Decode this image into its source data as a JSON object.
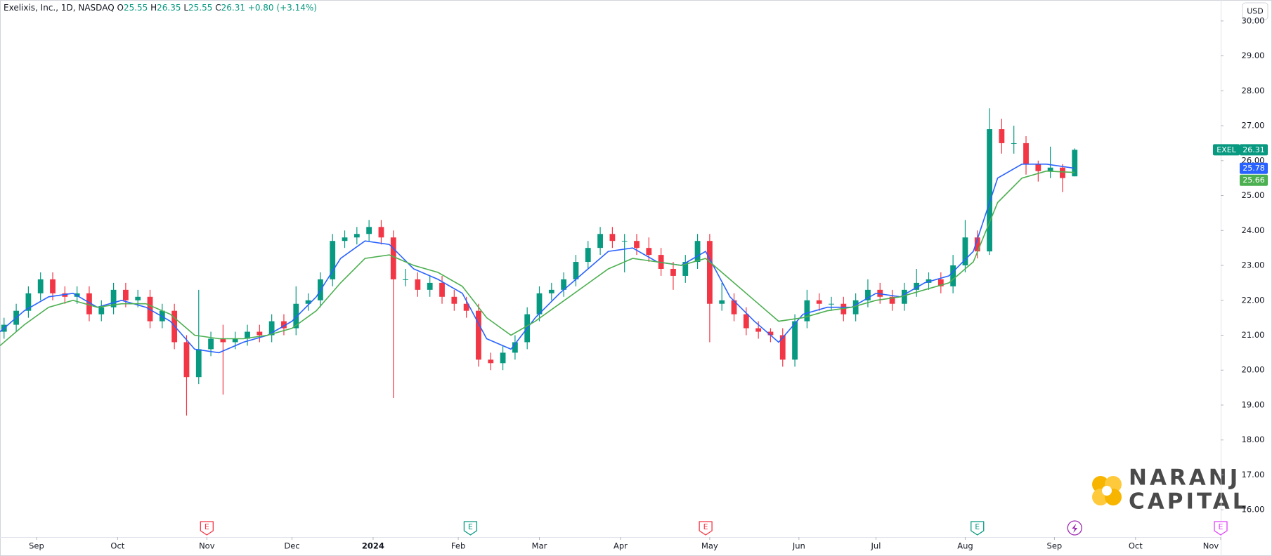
{
  "header": {
    "symbol": "Exelixis, Inc., 1D, NASDAQ",
    "ohlc_labels": [
      "O",
      "H",
      "L",
      "C"
    ],
    "change": "+0.80 (+3.14%)"
  },
  "currency": "USD",
  "ticker": "EXEL",
  "logo": [
    "NARANJ",
    "CAPITAL"
  ],
  "chart_data": {
    "type": "candlestick",
    "up_color": "#089981",
    "down_color": "#f23645",
    "x": [
      1,
      4,
      7,
      10,
      13,
      16,
      19,
      22,
      25,
      28,
      31,
      34,
      37,
      40,
      43,
      46,
      49,
      52,
      55,
      58,
      61,
      64,
      67,
      70,
      73,
      76,
      79,
      82,
      85,
      88,
      91,
      94,
      97,
      100,
      103,
      106,
      109,
      112,
      115,
      118,
      121,
      124,
      127,
      130,
      133,
      136,
      139,
      142,
      145,
      148,
      151,
      154,
      157,
      160,
      163,
      166,
      169,
      172,
      175,
      178,
      181,
      184,
      187,
      190,
      193,
      196,
      199,
      202,
      205,
      208,
      211,
      214,
      217,
      220,
      223,
      226,
      229,
      232,
      235,
      238,
      241,
      244,
      247,
      250,
      253,
      256,
      259,
      262,
      265
    ],
    "open": [
      21.1,
      21.3,
      21.7,
      22.2,
      22.6,
      22.2,
      22.1,
      22.2,
      21.6,
      21.8,
      22.3,
      22.0,
      22.1,
      21.4,
      21.7,
      20.8,
      19.8,
      20.6,
      20.9,
      20.8,
      20.9,
      21.1,
      21.0,
      21.4,
      21.2,
      21.9,
      22.0,
      22.6,
      23.7,
      23.8,
      23.9,
      24.1,
      23.8,
      22.6,
      22.6,
      22.3,
      22.5,
      22.1,
      21.9,
      21.7,
      20.3,
      20.2,
      20.5,
      20.8,
      21.6,
      22.2,
      22.3,
      22.6,
      23.1,
      23.5,
      23.9,
      23.7,
      23.7,
      23.5,
      23.3,
      22.9,
      22.7,
      23.1,
      23.7,
      21.9,
      22.0,
      21.6,
      21.2,
      21.1,
      21.0,
      20.3,
      21.4,
      22.0,
      21.9,
      21.9,
      21.6,
      22.0,
      22.3,
      22.1,
      21.9,
      22.3,
      22.5,
      22.6,
      22.4,
      23.0,
      23.8,
      23.4,
      26.9,
      26.5,
      26.5,
      25.9,
      25.7,
      25.8,
      25.55
    ],
    "high": [
      21.5,
      21.9,
      22.4,
      22.8,
      22.8,
      22.4,
      22.4,
      22.4,
      22.0,
      22.5,
      22.5,
      22.3,
      22.3,
      21.9,
      21.9,
      21.0,
      22.3,
      21.1,
      21.3,
      21.1,
      21.3,
      21.3,
      21.6,
      21.6,
      22.4,
      22.2,
      22.8,
      23.9,
      24.0,
      24.1,
      24.3,
      24.3,
      24.0,
      22.9,
      22.8,
      22.7,
      22.7,
      22.3,
      22.1,
      21.9,
      20.5,
      20.7,
      21.0,
      21.8,
      22.4,
      22.5,
      22.8,
      23.3,
      23.7,
      24.1,
      24.1,
      23.9,
      23.9,
      23.8,
      23.5,
      23.1,
      23.3,
      23.9,
      23.9,
      22.5,
      22.2,
      21.8,
      21.4,
      21.2,
      21.2,
      21.6,
      22.3,
      22.2,
      22.1,
      22.1,
      22.2,
      22.6,
      22.5,
      22.3,
      22.5,
      22.9,
      22.8,
      22.8,
      23.3,
      24.3,
      24.0,
      27.5,
      27.2,
      27.0,
      26.7,
      26.0,
      26.4,
      25.9,
      26.35
    ],
    "low": [
      20.9,
      21.1,
      21.5,
      22.0,
      22.0,
      21.9,
      21.9,
      21.4,
      21.4,
      21.6,
      21.8,
      21.8,
      21.2,
      21.2,
      20.6,
      18.7,
      19.6,
      20.4,
      19.3,
      20.6,
      20.7,
      20.8,
      20.8,
      21.0,
      21.0,
      21.7,
      21.8,
      22.4,
      23.5,
      23.6,
      23.7,
      23.6,
      19.2,
      22.4,
      22.1,
      22.1,
      21.9,
      21.7,
      21.5,
      20.1,
      20.0,
      20.0,
      20.3,
      20.6,
      21.4,
      22.0,
      22.1,
      22.4,
      22.9,
      23.3,
      23.5,
      22.8,
      23.3,
      23.1,
      22.7,
      22.3,
      22.5,
      22.9,
      20.8,
      21.7,
      21.4,
      21.0,
      20.9,
      20.8,
      20.1,
      20.1,
      21.2,
      21.7,
      21.7,
      21.4,
      21.4,
      21.8,
      21.9,
      21.7,
      21.7,
      22.1,
      22.3,
      22.2,
      22.2,
      22.8,
      23.2,
      23.3,
      26.2,
      26.2,
      25.6,
      25.4,
      25.5,
      25.1,
      25.55
    ],
    "close": [
      21.3,
      21.7,
      22.2,
      22.6,
      22.2,
      22.1,
      22.2,
      21.6,
      21.8,
      22.3,
      22.0,
      22.1,
      21.4,
      21.7,
      20.8,
      19.8,
      20.6,
      20.9,
      20.8,
      20.9,
      21.1,
      21.0,
      21.4,
      21.2,
      21.9,
      22.0,
      22.6,
      23.7,
      23.8,
      23.9,
      24.1,
      23.8,
      22.6,
      22.6,
      22.3,
      22.5,
      22.1,
      21.9,
      21.7,
      20.3,
      20.2,
      20.5,
      20.8,
      21.6,
      22.2,
      22.3,
      22.6,
      23.1,
      23.5,
      23.9,
      23.7,
      23.7,
      23.5,
      23.3,
      22.9,
      22.7,
      23.1,
      23.7,
      21.9,
      22.0,
      21.6,
      21.2,
      21.1,
      21.0,
      20.3,
      21.4,
      22.0,
      21.9,
      21.9,
      21.6,
      22.0,
      22.3,
      22.1,
      21.9,
      22.3,
      22.5,
      22.6,
      22.4,
      23.0,
      23.8,
      23.4,
      26.9,
      26.5,
      26.5,
      25.9,
      25.7,
      25.8,
      25.5,
      26.31
    ],
    "series": [
      {
        "type": "line",
        "color": "#2962ff",
        "x": [
          0,
          6,
          12,
          18,
          24,
          30,
          36,
          42,
          48,
          54,
          60,
          66,
          72,
          78,
          84,
          90,
          96,
          102,
          108,
          114,
          120,
          126,
          132,
          138,
          144,
          150,
          156,
          162,
          168,
          174,
          180,
          186,
          192,
          198,
          204,
          210,
          216,
          222,
          228,
          234,
          240,
          246,
          252,
          258,
          265
        ],
        "values": [
          21.1,
          21.7,
          22.1,
          22.2,
          21.8,
          22.0,
          21.8,
          21.4,
          20.6,
          20.5,
          20.8,
          21.0,
          21.4,
          22.1,
          23.2,
          23.7,
          23.6,
          22.9,
          22.6,
          22.2,
          20.9,
          20.6,
          21.5,
          22.2,
          22.8,
          23.4,
          23.5,
          23.1,
          23.0,
          23.4,
          22.1,
          21.4,
          20.8,
          21.6,
          21.8,
          21.8,
          22.2,
          22.1,
          22.5,
          22.7,
          23.4,
          25.5,
          25.9,
          25.9,
          25.78
        ]
      },
      {
        "type": "line",
        "color": "#4caf50",
        "x": [
          0,
          6,
          12,
          18,
          24,
          30,
          36,
          42,
          48,
          54,
          60,
          66,
          72,
          78,
          84,
          90,
          96,
          102,
          108,
          114,
          120,
          126,
          132,
          138,
          144,
          150,
          156,
          162,
          168,
          174,
          180,
          186,
          192,
          198,
          204,
          210,
          216,
          222,
          228,
          234,
          240,
          246,
          252,
          258,
          265
        ],
        "values": [
          20.7,
          21.3,
          21.8,
          22.0,
          21.8,
          21.9,
          21.9,
          21.6,
          21.0,
          20.9,
          20.9,
          21.0,
          21.2,
          21.7,
          22.5,
          23.2,
          23.3,
          23.0,
          22.8,
          22.4,
          21.5,
          21.0,
          21.4,
          21.9,
          22.4,
          22.9,
          23.2,
          23.1,
          23.0,
          23.2,
          22.6,
          22.0,
          21.4,
          21.5,
          21.7,
          21.8,
          22.0,
          22.1,
          22.3,
          22.5,
          23.1,
          24.8,
          25.5,
          25.7,
          25.66
        ]
      }
    ],
    "xlim": [
      0,
      301
    ],
    "xticks": [
      {
        "value": 9,
        "label": "Sep"
      },
      {
        "value": 29,
        "label": "Oct"
      },
      {
        "value": 51,
        "label": "Nov"
      },
      {
        "value": 72,
        "label": "Dec"
      },
      {
        "value": 92,
        "label": "2024"
      },
      {
        "value": 113,
        "label": "Feb"
      },
      {
        "value": 133,
        "label": "Mar"
      },
      {
        "value": 153,
        "label": "Apr"
      },
      {
        "value": 175,
        "label": "May"
      },
      {
        "value": 197,
        "label": "Jun"
      },
      {
        "value": 216,
        "label": "Jul"
      },
      {
        "value": 238,
        "label": "Aug"
      },
      {
        "value": 260,
        "label": "Sep"
      },
      {
        "value": 280,
        "label": "Oct"
      },
      {
        "value": 301,
        "label": "Nov"
      }
    ],
    "ylim": [
      15.22,
      30.6
    ],
    "yticks": [
      {
        "value": 16,
        "label": "16.00"
      },
      {
        "value": 17,
        "label": "17.00"
      },
      {
        "value": 18,
        "label": "18.00"
      },
      {
        "value": 19,
        "label": "19.00"
      },
      {
        "value": 20,
        "label": "20.00"
      },
      {
        "value": 21,
        "label": "21.00"
      },
      {
        "value": 22,
        "label": "22.00"
      },
      {
        "value": 23,
        "label": "23.00"
      },
      {
        "value": 24,
        "label": "24.00"
      },
      {
        "value": 25,
        "label": "25.00"
      },
      {
        "value": 26,
        "label": "26.00"
      },
      {
        "value": 27,
        "label": "27.00"
      },
      {
        "value": 28,
        "label": "28.00"
      },
      {
        "value": 29,
        "label": "29.00"
      },
      {
        "value": 30,
        "label": "30.00"
      }
    ],
    "events": [
      {
        "x": 51,
        "label": "E",
        "color": "#f23645"
      },
      {
        "x": 116,
        "label": "E",
        "color": "#089981"
      },
      {
        "x": 174,
        "label": "E",
        "color": "#f23645"
      },
      {
        "x": 241,
        "label": "E",
        "color": "#089981"
      },
      {
        "x": 265,
        "color": "#9c27b0"
      },
      {
        "x": 301,
        "label": "E",
        "color": "#e040fb"
      }
    ]
  }
}
